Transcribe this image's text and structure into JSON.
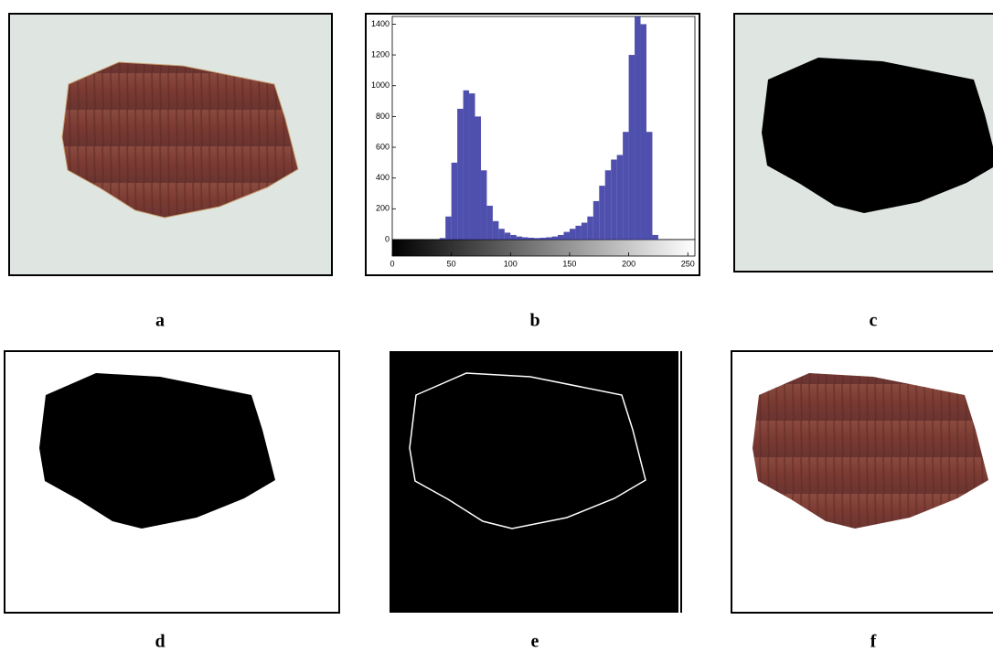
{
  "panels": [
    "a",
    "b",
    "c",
    "d",
    "e",
    "f"
  ],
  "chart_data": {
    "type": "histogram",
    "bins": [
      0,
      5,
      10,
      15,
      20,
      25,
      30,
      35,
      40,
      45,
      50,
      55,
      60,
      65,
      70,
      75,
      80,
      85,
      90,
      95,
      100,
      105,
      110,
      115,
      120,
      125,
      130,
      135,
      140,
      145,
      150,
      155,
      160,
      165,
      170,
      175,
      180,
      185,
      190,
      195,
      200,
      205,
      210,
      215,
      220,
      225,
      230,
      235,
      240,
      245,
      250,
      255
    ],
    "values": [
      0,
      0,
      0,
      0,
      0,
      0,
      0,
      0,
      10,
      150,
      500,
      850,
      970,
      950,
      800,
      450,
      220,
      120,
      70,
      45,
      30,
      20,
      15,
      12,
      10,
      12,
      15,
      20,
      30,
      50,
      70,
      90,
      110,
      150,
      250,
      350,
      450,
      520,
      550,
      700,
      1200,
      1450,
      1400,
      700,
      30,
      0,
      0,
      0,
      0,
      0,
      0
    ],
    "color": "#3030a0",
    "xlim": [
      0,
      256
    ],
    "ylim": [
      0,
      1450
    ],
    "xticks": [
      0,
      50,
      100,
      150,
      200,
      250
    ],
    "yticks": [
      0,
      200,
      400,
      600,
      800,
      1000,
      1200,
      1400
    ]
  }
}
